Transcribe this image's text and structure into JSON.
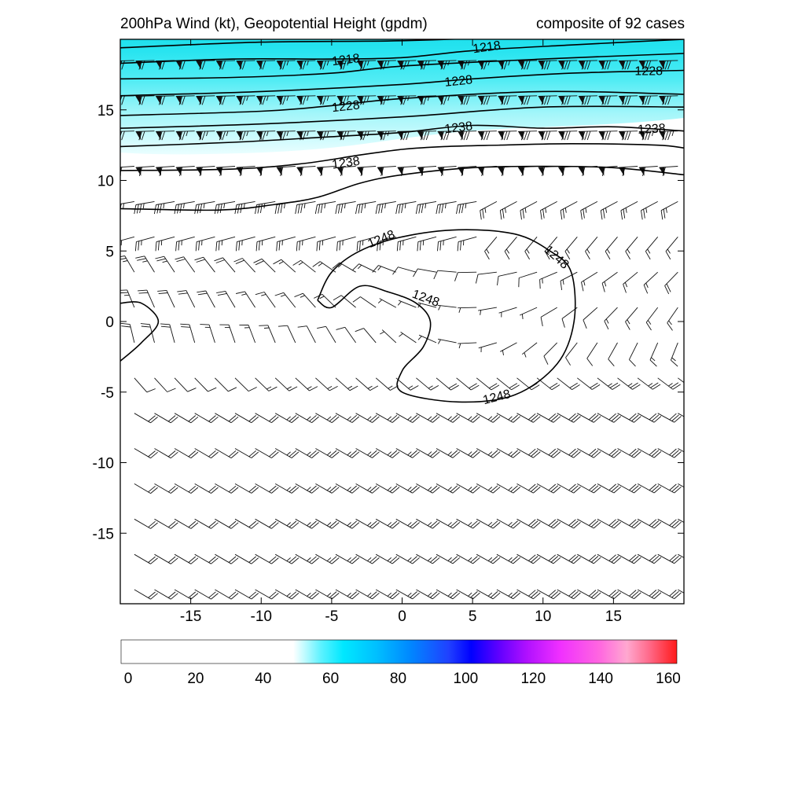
{
  "title_left": "200hPa Wind (kt), Geopotential Height (gpdm)",
  "title_right": "composite of 92 cases",
  "chart_data": {
    "type": "contour",
    "title": "200hPa Wind (kt), Geopotential Height (gpdm)",
    "subtitle": "composite of 92 cases",
    "xlim": [
      -20,
      20
    ],
    "ylim": [
      -20,
      20
    ],
    "x_ticks": [
      -15,
      -10,
      -5,
      0,
      5,
      10,
      15
    ],
    "y_ticks": [
      15,
      10,
      5,
      0,
      -5,
      -10,
      -15
    ],
    "contour_levels": [
      {
        "value": 1218,
        "label": "1218"
      },
      {
        "value": 1228,
        "label": "1228"
      },
      {
        "value": 1238,
        "label": "1238"
      },
      {
        "value": 1248,
        "label": "1248"
      }
    ],
    "contours": [
      {
        "level": 1218,
        "points": [
          [
            -20,
            19.4
          ],
          [
            -10,
            19.8
          ],
          [
            0,
            19.9
          ],
          [
            10,
            20.3
          ],
          [
            20,
            21
          ]
        ]
      },
      {
        "level": 1218,
        "points": [
          [
            -20,
            18.3
          ],
          [
            -12,
            18.6
          ],
          [
            -5,
            18.6
          ],
          [
            0,
            18.7
          ],
          [
            5,
            19.2
          ],
          [
            12,
            19.6
          ],
          [
            20,
            20
          ]
        ]
      },
      {
        "level": 1218,
        "points": [
          [
            -20,
            17.2
          ],
          [
            -12,
            17.3
          ],
          [
            -5,
            17.6
          ],
          [
            0,
            18.1
          ],
          [
            10,
            18.6
          ],
          [
            20,
            19
          ]
        ]
      },
      {
        "level": 1228,
        "points": [
          [
            -20,
            16
          ],
          [
            -10,
            16.3
          ],
          [
            0,
            16.8
          ],
          [
            5,
            17.2
          ],
          [
            12,
            17.6
          ],
          [
            20,
            17.8
          ]
        ]
      },
      {
        "level": 1228,
        "points": [
          [
            -20,
            14.6
          ],
          [
            -10,
            14.9
          ],
          [
            -5,
            15.3
          ],
          [
            0,
            15.8
          ],
          [
            10,
            16.3
          ],
          [
            20,
            16.1
          ]
        ]
      },
      {
        "level": 1228,
        "points": [
          [
            -20,
            13.7
          ],
          [
            -10,
            14
          ],
          [
            0,
            14.5
          ],
          [
            10,
            15.2
          ],
          [
            20,
            15.2
          ]
        ]
      },
      {
        "level": 1238,
        "points": [
          [
            -20,
            12.4
          ],
          [
            -12,
            12.7
          ],
          [
            -5,
            13.1
          ],
          [
            0,
            13.4
          ],
          [
            5,
            13.9
          ],
          [
            10,
            13.7
          ],
          [
            15,
            13.8
          ],
          [
            20,
            13.5
          ]
        ]
      },
      {
        "level": 1238,
        "points": [
          [
            -20,
            10.7
          ],
          [
            -12,
            10.8
          ],
          [
            -7,
            11.2
          ],
          [
            -3,
            11.8
          ],
          [
            0,
            12.2
          ],
          [
            3,
            12.4
          ],
          [
            7,
            12.5
          ],
          [
            12,
            12.6
          ],
          [
            18,
            12.5
          ],
          [
            20,
            12.3
          ]
        ]
      },
      {
        "level": 1238,
        "points": [
          [
            -20,
            8
          ],
          [
            -13,
            7.9
          ],
          [
            -9,
            8.3
          ],
          [
            -6,
            8.8
          ],
          [
            -3,
            9.8
          ],
          [
            0,
            10.4
          ],
          [
            5,
            10.9
          ],
          [
            10,
            11
          ],
          [
            15,
            10.9
          ],
          [
            20,
            10.4
          ]
        ]
      },
      {
        "level": 1248,
        "points": [
          [
            -6,
            1.5
          ],
          [
            -5,
            3.5
          ],
          [
            -3,
            5
          ],
          [
            0,
            6
          ],
          [
            4,
            6.5
          ],
          [
            8,
            6.2
          ],
          [
            10.5,
            5
          ],
          [
            12,
            3.5
          ],
          [
            12.2,
            0
          ],
          [
            11,
            -3
          ],
          [
            8,
            -5.2
          ],
          [
            4,
            -5.7
          ],
          [
            0,
            -5
          ],
          [
            0,
            -3.5
          ],
          [
            1.5,
            -1.8
          ],
          [
            2,
            0
          ],
          [
            1,
            1.3
          ],
          [
            -1,
            2.1
          ],
          [
            -3,
            2.5
          ],
          [
            -5,
            1
          ],
          [
            -6,
            1.5
          ]
        ]
      },
      {
        "level": 1248,
        "points": [
          [
            -20,
            1.3
          ],
          [
            -18.5,
            1.3
          ],
          [
            -17.3,
            0
          ],
          [
            -18.5,
            -1.5
          ],
          [
            -20,
            -2.8
          ]
        ]
      }
    ],
    "colorbar": {
      "ticks": [
        0,
        20,
        40,
        60,
        80,
        100,
        120,
        140,
        160
      ],
      "min": 0,
      "max": 160
    }
  }
}
